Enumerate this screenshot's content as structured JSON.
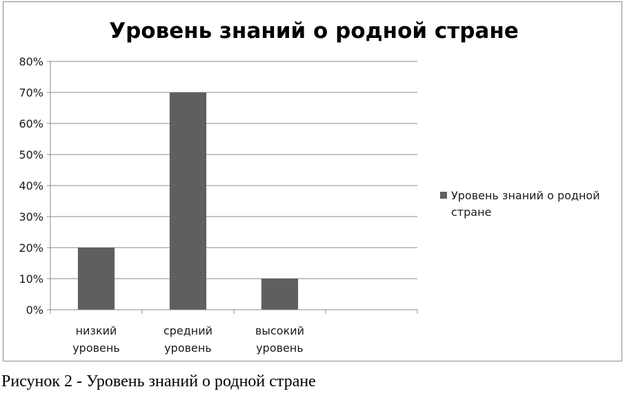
{
  "chart_data": {
    "type": "bar",
    "title": "Уровень знаний о родной стране",
    "categories": [
      [
        "низкий",
        "уровень"
      ],
      [
        "средний",
        "уровень"
      ],
      [
        "высокий",
        "уровень"
      ],
      [
        ""
      ]
    ],
    "series": [
      {
        "name": "Уровень знаний о родной стране",
        "values": [
          20,
          70,
          10,
          null
        ],
        "color": "#5f5f5f"
      }
    ],
    "y_ticks": [
      "0%",
      "10%",
      "20%",
      "30%",
      "40%",
      "50%",
      "60%",
      "70%",
      "80%"
    ],
    "ylim": [
      0,
      80
    ],
    "grid": true,
    "legend": {
      "position": "right",
      "lines": [
        "Уровень знаний о родной",
        "стране"
      ]
    }
  },
  "caption": "Рисунок 2 - Уровень знаний о родной стране"
}
